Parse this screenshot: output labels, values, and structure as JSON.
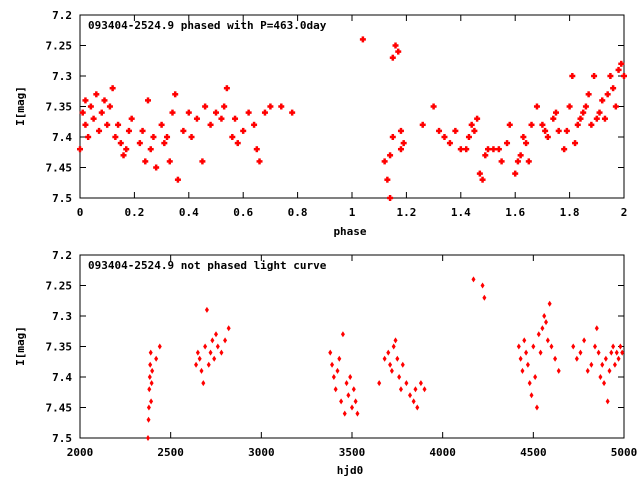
{
  "chart_data": [
    {
      "type": "scatter",
      "title": "093404-2524.9 phased with P=463.0day",
      "xlabel": "phase",
      "ylabel": "I[mag]",
      "xlim": [
        0,
        2
      ],
      "ylim": [
        7.2,
        7.5
      ],
      "y_inverted": true,
      "xticks": [
        0,
        0.2,
        0.4,
        0.6,
        0.8,
        1,
        1.2,
        1.4,
        1.6,
        1.8,
        2
      ],
      "xtick_labels": [
        "0",
        "0.2",
        "0.4",
        "0.6",
        "0.8",
        "1",
        "1.2",
        "1.4",
        "1.6",
        "1.8",
        "2"
      ],
      "yticks": [
        7.2,
        7.25,
        7.3,
        7.35,
        7.4,
        7.45,
        7.5
      ],
      "ytick_labels": [
        "7.2",
        "7.25",
        "7.3",
        "7.35",
        "7.4",
        "7.45",
        "7.5"
      ],
      "color": "#ff0000",
      "grid": false,
      "marker": "plus",
      "series": [
        {
          "points": [
            [
              0.0,
              7.42
            ],
            [
              0.01,
              7.36
            ],
            [
              0.02,
              7.34
            ],
            [
              0.02,
              7.38
            ],
            [
              0.03,
              7.4
            ],
            [
              0.04,
              7.35
            ],
            [
              0.05,
              7.37
            ],
            [
              0.06,
              7.33
            ],
            [
              0.07,
              7.39
            ],
            [
              0.08,
              7.36
            ],
            [
              0.09,
              7.34
            ],
            [
              0.1,
              7.38
            ],
            [
              0.11,
              7.35
            ],
            [
              0.12,
              7.32
            ],
            [
              0.13,
              7.4
            ],
            [
              0.14,
              7.38
            ],
            [
              0.15,
              7.41
            ],
            [
              0.16,
              7.43
            ],
            [
              0.17,
              7.42
            ],
            [
              0.18,
              7.39
            ],
            [
              0.19,
              7.37
            ],
            [
              0.22,
              7.41
            ],
            [
              0.23,
              7.39
            ],
            [
              0.24,
              7.44
            ],
            [
              0.25,
              7.34
            ],
            [
              0.26,
              7.42
            ],
            [
              0.27,
              7.4
            ],
            [
              0.28,
              7.45
            ],
            [
              0.3,
              7.38
            ],
            [
              0.31,
              7.41
            ],
            [
              0.32,
              7.4
            ],
            [
              0.33,
              7.44
            ],
            [
              0.34,
              7.36
            ],
            [
              0.35,
              7.33
            ],
            [
              0.36,
              7.47
            ],
            [
              0.38,
              7.39
            ],
            [
              0.4,
              7.36
            ],
            [
              0.41,
              7.4
            ],
            [
              0.43,
              7.37
            ],
            [
              0.45,
              7.44
            ],
            [
              0.46,
              7.35
            ],
            [
              0.48,
              7.38
            ],
            [
              0.5,
              7.36
            ],
            [
              0.52,
              7.37
            ],
            [
              0.53,
              7.35
            ],
            [
              0.54,
              7.32
            ],
            [
              0.56,
              7.4
            ],
            [
              0.57,
              7.37
            ],
            [
              0.58,
              7.41
            ],
            [
              0.6,
              7.39
            ],
            [
              0.62,
              7.36
            ],
            [
              0.64,
              7.38
            ],
            [
              0.65,
              7.42
            ],
            [
              0.66,
              7.44
            ],
            [
              0.68,
              7.36
            ],
            [
              0.7,
              7.35
            ],
            [
              0.74,
              7.35
            ],
            [
              0.78,
              7.36
            ],
            [
              1.04,
              7.24
            ],
            [
              1.12,
              7.44
            ],
            [
              1.13,
              7.47
            ],
            [
              1.14,
              7.5
            ],
            [
              1.14,
              7.43
            ],
            [
              1.15,
              7.4
            ],
            [
              1.15,
              7.27
            ],
            [
              1.16,
              7.25
            ],
            [
              1.17,
              7.26
            ],
            [
              1.18,
              7.39
            ],
            [
              1.18,
              7.42
            ],
            [
              1.19,
              7.41
            ],
            [
              1.26,
              7.38
            ],
            [
              1.3,
              7.35
            ],
            [
              1.32,
              7.39
            ],
            [
              1.34,
              7.4
            ],
            [
              1.36,
              7.41
            ],
            [
              1.38,
              7.39
            ],
            [
              1.4,
              7.42
            ],
            [
              1.42,
              7.42
            ],
            [
              1.43,
              7.4
            ],
            [
              1.44,
              7.38
            ],
            [
              1.45,
              7.39
            ],
            [
              1.46,
              7.37
            ],
            [
              1.47,
              7.46
            ],
            [
              1.48,
              7.47
            ],
            [
              1.49,
              7.43
            ],
            [
              1.5,
              7.42
            ],
            [
              1.52,
              7.42
            ],
            [
              1.54,
              7.42
            ],
            [
              1.55,
              7.44
            ],
            [
              1.57,
              7.41
            ],
            [
              1.58,
              7.38
            ],
            [
              1.6,
              7.46
            ],
            [
              1.61,
              7.44
            ],
            [
              1.62,
              7.43
            ],
            [
              1.63,
              7.4
            ],
            [
              1.64,
              7.41
            ],
            [
              1.65,
              7.44
            ],
            [
              1.66,
              7.38
            ],
            [
              1.68,
              7.35
            ],
            [
              1.7,
              7.38
            ],
            [
              1.71,
              7.39
            ],
            [
              1.72,
              7.4
            ],
            [
              1.74,
              7.37
            ],
            [
              1.75,
              7.36
            ],
            [
              1.76,
              7.39
            ],
            [
              1.78,
              7.42
            ],
            [
              1.79,
              7.39
            ],
            [
              1.8,
              7.35
            ],
            [
              1.81,
              7.3
            ],
            [
              1.82,
              7.41
            ],
            [
              1.83,
              7.38
            ],
            [
              1.84,
              7.37
            ],
            [
              1.85,
              7.36
            ],
            [
              1.86,
              7.35
            ],
            [
              1.87,
              7.33
            ],
            [
              1.88,
              7.38
            ],
            [
              1.89,
              7.3
            ],
            [
              1.9,
              7.37
            ],
            [
              1.91,
              7.36
            ],
            [
              1.92,
              7.34
            ],
            [
              1.93,
              7.37
            ],
            [
              1.94,
              7.33
            ],
            [
              1.95,
              7.3
            ],
            [
              1.96,
              7.32
            ],
            [
              1.97,
              7.35
            ],
            [
              1.98,
              7.29
            ],
            [
              1.99,
              7.28
            ],
            [
              2.0,
              7.3
            ]
          ]
        }
      ]
    },
    {
      "type": "scatter",
      "title": "093404-2524.9 not phased light curve",
      "xlabel": "hjd0",
      "ylabel": "I[mag]",
      "xlim": [
        2000,
        5000
      ],
      "ylim": [
        7.2,
        7.5
      ],
      "y_inverted": true,
      "xticks": [
        2000,
        2500,
        3000,
        3500,
        4000,
        4500,
        5000
      ],
      "xtick_labels": [
        "2000",
        "2500",
        "3000",
        "3500",
        "4000",
        "4500",
        "5000"
      ],
      "yticks": [
        7.2,
        7.25,
        7.3,
        7.35,
        7.4,
        7.45,
        7.5
      ],
      "ytick_labels": [
        "7.2",
        "7.25",
        "7.3",
        "7.35",
        "7.4",
        "7.45",
        "7.5"
      ],
      "color": "#ff0000",
      "grid": false,
      "marker": "diamond",
      "series": [
        {
          "points": [
            [
              2375,
              7.5
            ],
            [
              2378,
              7.47
            ],
            [
              2380,
              7.45
            ],
            [
              2382,
              7.42
            ],
            [
              2385,
              7.4
            ],
            [
              2387,
              7.38
            ],
            [
              2390,
              7.36
            ],
            [
              2392,
              7.44
            ],
            [
              2395,
              7.41
            ],
            [
              2398,
              7.39
            ],
            [
              2420,
              7.37
            ],
            [
              2440,
              7.35
            ],
            [
              2640,
              7.38
            ],
            [
              2650,
              7.36
            ],
            [
              2660,
              7.37
            ],
            [
              2670,
              7.39
            ],
            [
              2680,
              7.41
            ],
            [
              2690,
              7.35
            ],
            [
              2700,
              7.29
            ],
            [
              2710,
              7.38
            ],
            [
              2720,
              7.36
            ],
            [
              2730,
              7.34
            ],
            [
              2740,
              7.37
            ],
            [
              2750,
              7.33
            ],
            [
              2760,
              7.35
            ],
            [
              2780,
              7.36
            ],
            [
              2800,
              7.34
            ],
            [
              2820,
              7.32
            ],
            [
              3380,
              7.36
            ],
            [
              3390,
              7.38
            ],
            [
              3400,
              7.4
            ],
            [
              3410,
              7.42
            ],
            [
              3420,
              7.39
            ],
            [
              3430,
              7.37
            ],
            [
              3440,
              7.44
            ],
            [
              3450,
              7.33
            ],
            [
              3460,
              7.46
            ],
            [
              3470,
              7.41
            ],
            [
              3480,
              7.43
            ],
            [
              3490,
              7.4
            ],
            [
              3500,
              7.45
            ],
            [
              3510,
              7.42
            ],
            [
              3520,
              7.44
            ],
            [
              3530,
              7.46
            ],
            [
              3650,
              7.41
            ],
            [
              3680,
              7.37
            ],
            [
              3700,
              7.36
            ],
            [
              3710,
              7.38
            ],
            [
              3720,
              7.39
            ],
            [
              3730,
              7.35
            ],
            [
              3740,
              7.34
            ],
            [
              3750,
              7.37
            ],
            [
              3760,
              7.4
            ],
            [
              3770,
              7.42
            ],
            [
              3780,
              7.38
            ],
            [
              3800,
              7.41
            ],
            [
              3820,
              7.43
            ],
            [
              3840,
              7.44
            ],
            [
              3850,
              7.42
            ],
            [
              3860,
              7.45
            ],
            [
              3880,
              7.41
            ],
            [
              3900,
              7.42
            ],
            [
              4170,
              7.24
            ],
            [
              4220,
              7.25
            ],
            [
              4230,
              7.27
            ],
            [
              4420,
              7.35
            ],
            [
              4430,
              7.37
            ],
            [
              4440,
              7.39
            ],
            [
              4450,
              7.34
            ],
            [
              4460,
              7.36
            ],
            [
              4470,
              7.38
            ],
            [
              4480,
              7.41
            ],
            [
              4490,
              7.43
            ],
            [
              4500,
              7.35
            ],
            [
              4510,
              7.4
            ],
            [
              4520,
              7.45
            ],
            [
              4530,
              7.33
            ],
            [
              4540,
              7.36
            ],
            [
              4550,
              7.32
            ],
            [
              4560,
              7.3
            ],
            [
              4570,
              7.31
            ],
            [
              4580,
              7.34
            ],
            [
              4590,
              7.28
            ],
            [
              4600,
              7.35
            ],
            [
              4620,
              7.37
            ],
            [
              4640,
              7.39
            ],
            [
              4720,
              7.35
            ],
            [
              4740,
              7.37
            ],
            [
              4760,
              7.36
            ],
            [
              4780,
              7.34
            ],
            [
              4800,
              7.39
            ],
            [
              4820,
              7.38
            ],
            [
              4840,
              7.35
            ],
            [
              4850,
              7.32
            ],
            [
              4860,
              7.36
            ],
            [
              4870,
              7.4
            ],
            [
              4880,
              7.38
            ],
            [
              4890,
              7.41
            ],
            [
              4900,
              7.37
            ],
            [
              4910,
              7.44
            ],
            [
              4920,
              7.39
            ],
            [
              4930,
              7.36
            ],
            [
              4940,
              7.35
            ],
            [
              4950,
              7.38
            ],
            [
              4960,
              7.36
            ],
            [
              4970,
              7.37
            ],
            [
              4980,
              7.35
            ],
            [
              4990,
              7.36
            ]
          ]
        }
      ]
    }
  ]
}
